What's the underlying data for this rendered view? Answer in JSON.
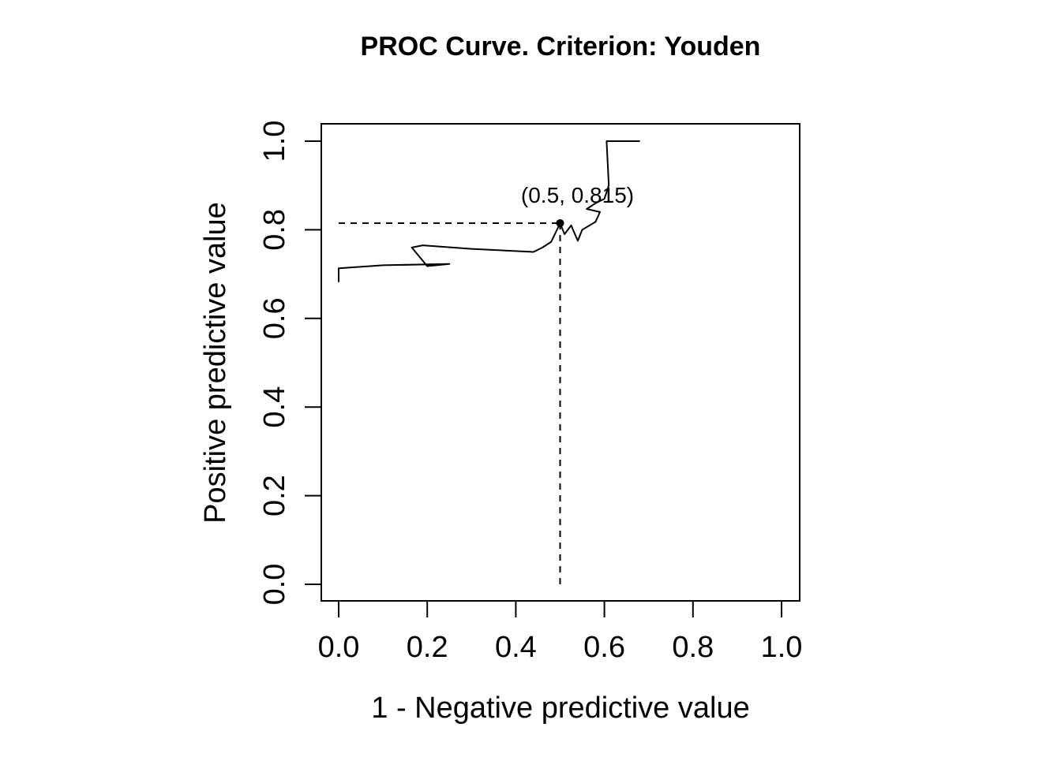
{
  "chart_data": {
    "type": "line",
    "title": "PROC Curve. Criterion: Youden",
    "xlabel": "1 - Negative predictive value",
    "ylabel": "Positive predictive value",
    "xlim": [
      0,
      1
    ],
    "ylim": [
      0,
      1
    ],
    "x_ticks": [
      "0.0",
      "0.2",
      "0.4",
      "0.6",
      "0.8",
      "1.0"
    ],
    "y_ticks": [
      "0.0",
      "0.2",
      "0.4",
      "0.6",
      "0.8",
      "1.0"
    ],
    "grid": false,
    "series": [
      {
        "points": [
          [
            0.0,
            0.682
          ],
          [
            0.0,
            0.713
          ],
          [
            0.1,
            0.72
          ],
          [
            0.25,
            0.723
          ],
          [
            0.2,
            0.718
          ],
          [
            0.165,
            0.76
          ],
          [
            0.19,
            0.765
          ],
          [
            0.3,
            0.757
          ],
          [
            0.44,
            0.75
          ],
          [
            0.46,
            0.76
          ],
          [
            0.48,
            0.773
          ],
          [
            0.5,
            0.815
          ],
          [
            0.51,
            0.79
          ],
          [
            0.525,
            0.81
          ],
          [
            0.54,
            0.775
          ],
          [
            0.55,
            0.8
          ],
          [
            0.57,
            0.812
          ],
          [
            0.58,
            0.818
          ],
          [
            0.59,
            0.84
          ],
          [
            0.56,
            0.847
          ],
          [
            0.58,
            0.86
          ],
          [
            0.6,
            0.87
          ],
          [
            0.61,
            0.9
          ],
          [
            0.605,
            1.0
          ],
          [
            0.68,
            1.0
          ]
        ]
      }
    ],
    "optimal_point": {
      "x": 0.5,
      "y": 0.815,
      "label": "(0.5, 0.815)"
    }
  }
}
